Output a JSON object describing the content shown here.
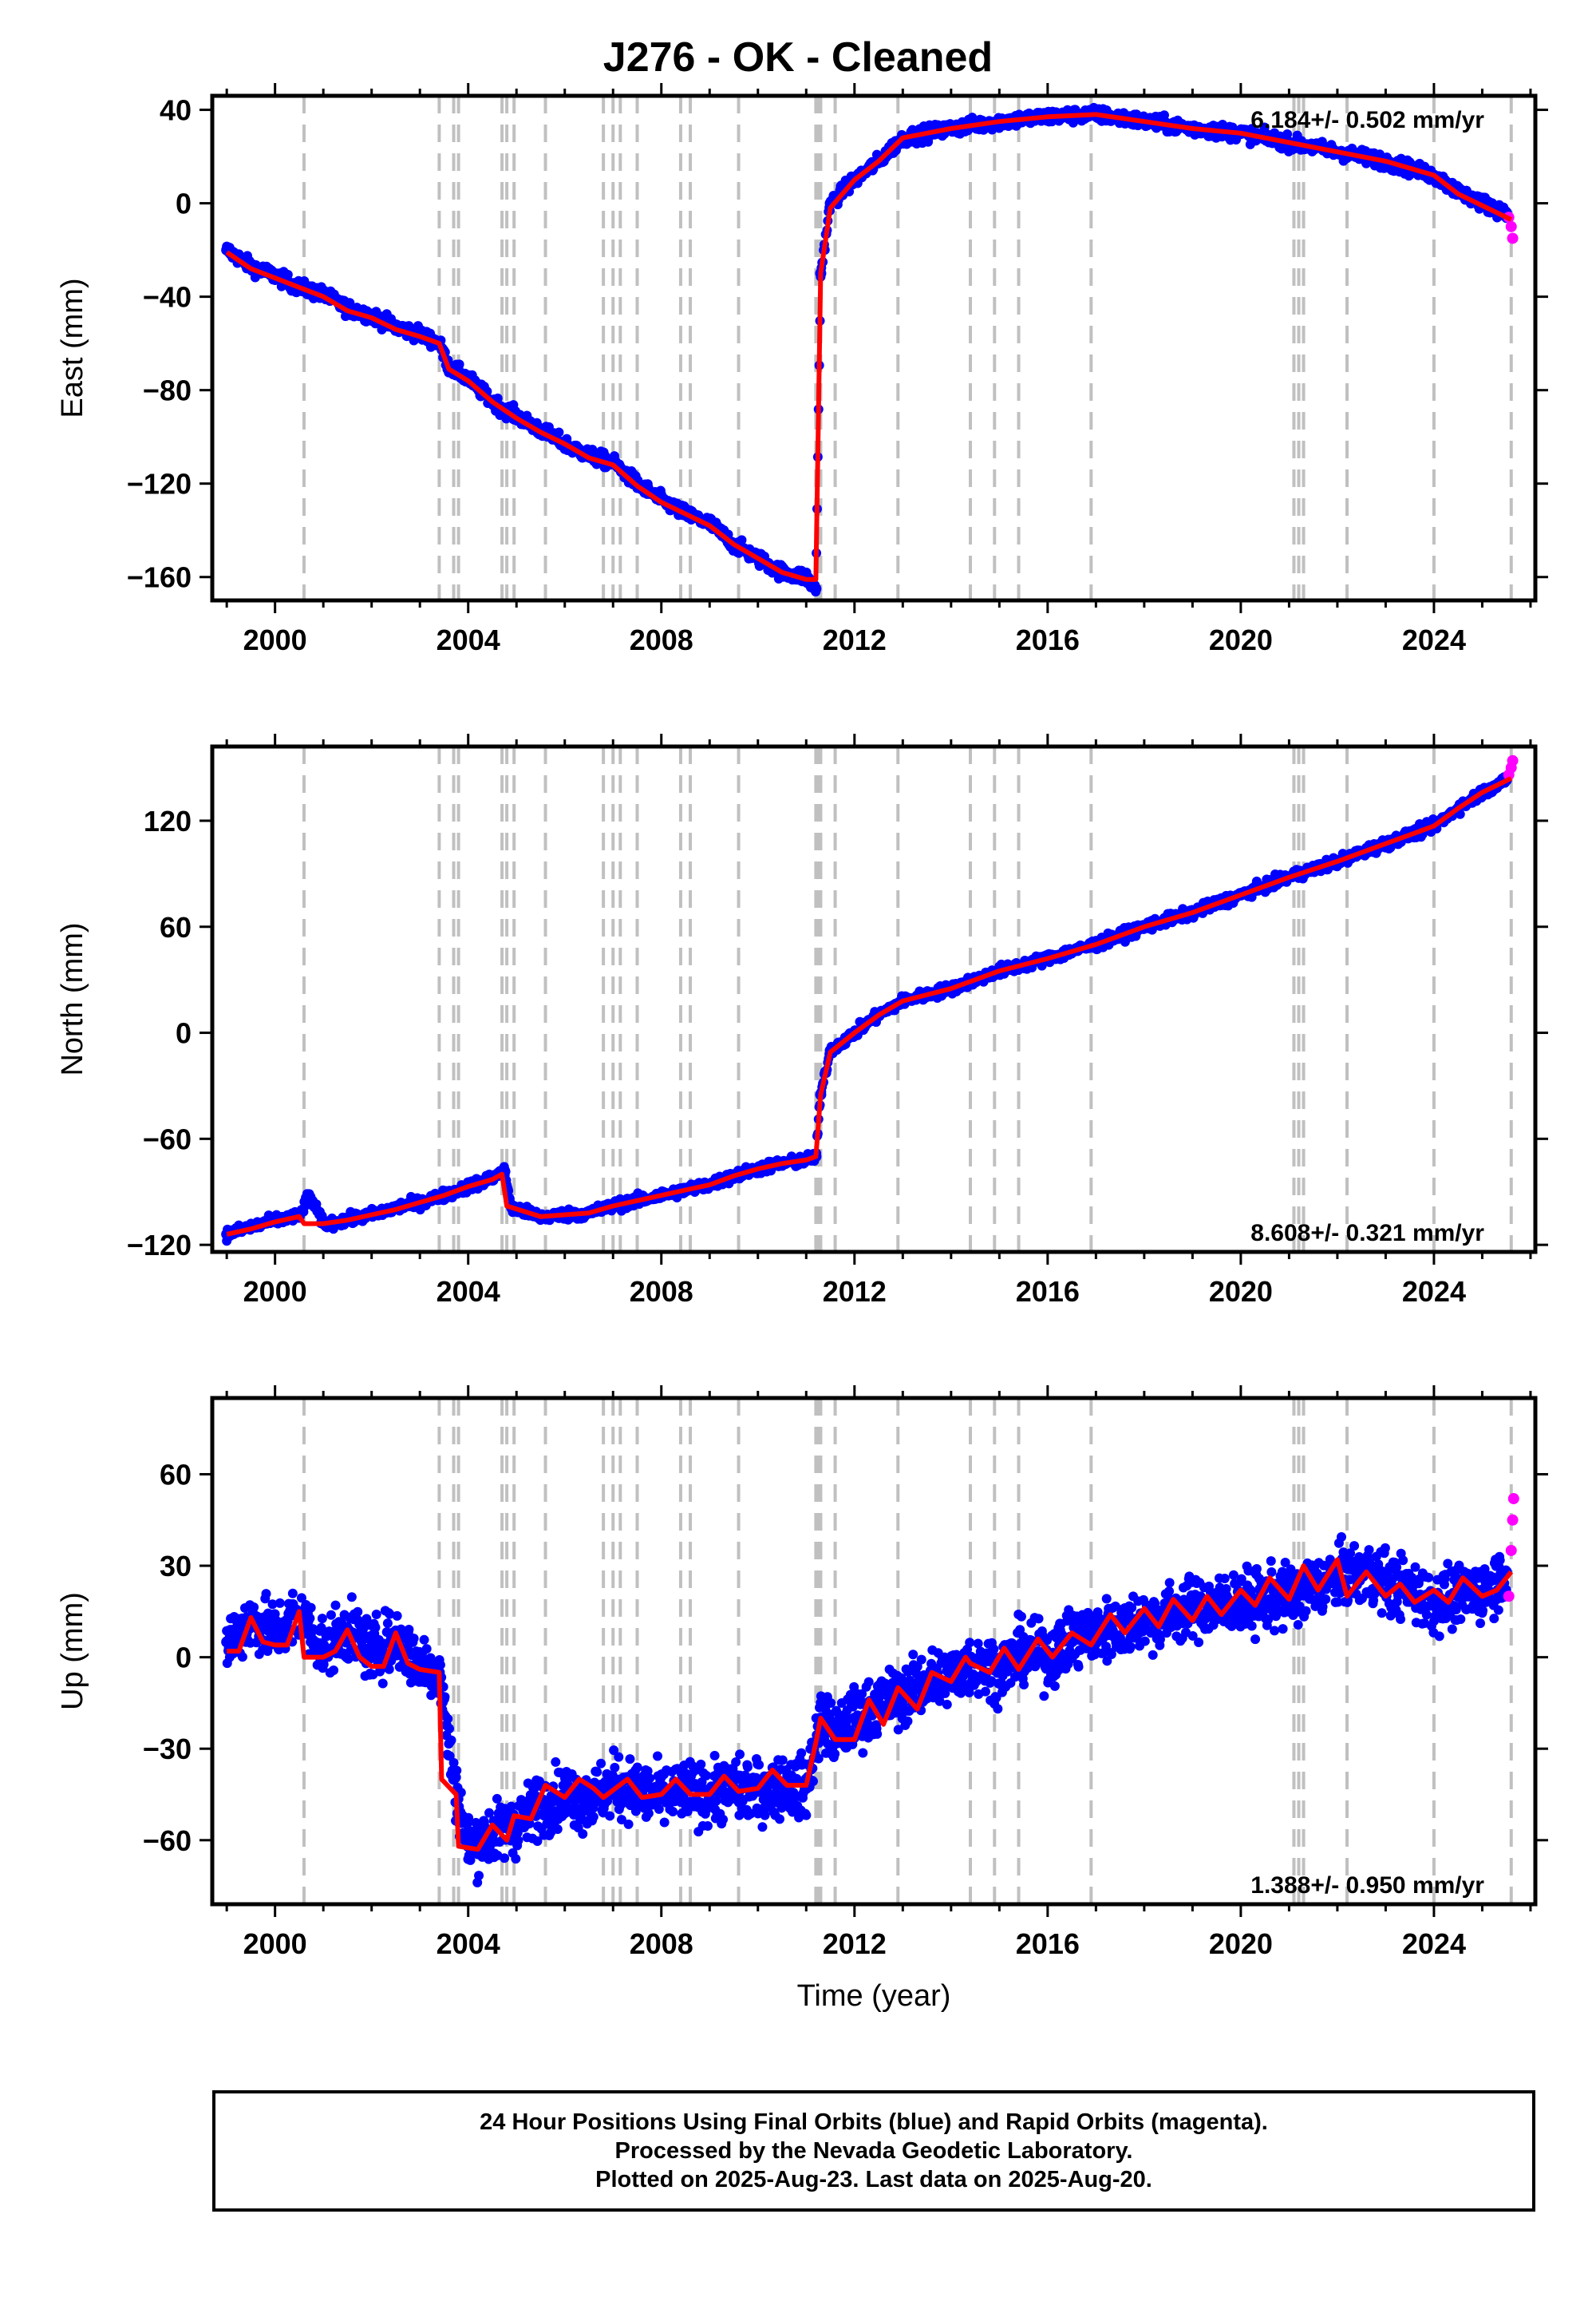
{
  "title": "J276  - OK - Cleaned",
  "footer": {
    "line1": "24 Hour Positions Using Final Orbits (blue) and Rapid Orbits (magenta).",
    "line2": "Processed by the Nevada Geodetic Laboratory.",
    "line3": "Plotted on 2025-Aug-23. Last data on 2025-Aug-20."
  },
  "colors": {
    "final": "#0000ff",
    "rapid": "#ff00ff",
    "model": "#ff0000",
    "steps": "#c0c0c0"
  },
  "chart_data": [
    {
      "type": "scatter",
      "ylabel": "East (mm)",
      "xlabel": "",
      "xlim": [
        1998.7,
        2026.1
      ],
      "ylim": [
        -170,
        46
      ],
      "x_ticks": [
        2000,
        2004,
        2008,
        2012,
        2016,
        2020,
        2024
      ],
      "y_ticks": [
        -160,
        -120,
        -80,
        -40,
        0,
        40
      ],
      "rate_text": "6.184+/- 0.502 mm/yr",
      "rate_position": "top-right",
      "step_epochs": [
        2000.6,
        2003.4,
        2003.7,
        2003.8,
        2004.7,
        2004.8,
        2004.95,
        2005.6,
        2006.8,
        2007.0,
        2007.15,
        2007.5,
        2008.4,
        2008.6,
        2009.6,
        2011.2,
        2011.25,
        2011.3,
        2011.6,
        2012.9,
        2014.4,
        2014.9,
        2015.4,
        2016.9,
        2021.1,
        2021.2,
        2021.3,
        2022.2,
        2024.0,
        2025.6
      ],
      "series": [
        {
          "name": "Final Orbits",
          "style": "points",
          "color": "blue",
          "x": [
            1999.0,
            1999.5,
            2000.0,
            2000.5,
            2001.0,
            2001.5,
            2002.0,
            2002.5,
            2003.0,
            2003.4,
            2003.6,
            2004.0,
            2004.5,
            2005.0,
            2005.5,
            2006.0,
            2006.5,
            2007.0,
            2007.5,
            2008.0,
            2008.5,
            2009.0,
            2009.5,
            2010.0,
            2010.5,
            2011.0,
            2011.2,
            2011.3,
            2011.5,
            2012.0,
            2012.5,
            2013.0,
            2013.5,
            2014.0,
            2015.0,
            2016.0,
            2017.0,
            2018.0,
            2019.0,
            2020.0,
            2021.0,
            2022.0,
            2023.0,
            2024.0,
            2024.5,
            2025.0,
            2025.5
          ],
          "y": [
            -20,
            -27,
            -31,
            -36,
            -39,
            -45,
            -48,
            -53,
            -56,
            -60,
            -70,
            -75,
            -85,
            -91,
            -97,
            -103,
            -108,
            -111,
            -120,
            -127,
            -133,
            -137,
            -146,
            -152,
            -158,
            -160,
            -165,
            -30,
            0,
            10,
            18,
            28,
            30,
            32,
            35,
            37,
            38,
            35,
            32,
            30,
            26,
            22,
            18,
            12,
            5,
            0,
            -4
          ]
        },
        {
          "name": "Rapid Orbits",
          "style": "points",
          "color": "magenta",
          "x": [
            2025.55,
            2025.6,
            2025.63
          ],
          "y": [
            -6,
            -10,
            -15
          ]
        },
        {
          "name": "Model",
          "style": "line",
          "color": "red",
          "x": [
            1999.0,
            1999.5,
            2000.0,
            2000.5,
            2001.0,
            2001.5,
            2002.0,
            2002.5,
            2003.0,
            2003.4,
            2003.6,
            2004.0,
            2004.5,
            2005.0,
            2005.5,
            2006.0,
            2006.5,
            2007.0,
            2007.5,
            2008.0,
            2008.5,
            2009.0,
            2009.5,
            2010.0,
            2010.5,
            2011.0,
            2011.2,
            2011.3,
            2011.5,
            2012.0,
            2012.5,
            2013.0,
            2013.5,
            2014.0,
            2015.0,
            2016.0,
            2017.0,
            2018.0,
            2019.0,
            2020.0,
            2021.0,
            2022.0,
            2023.0,
            2024.0,
            2024.5,
            2025.0,
            2025.6
          ],
          "y": [
            -21,
            -28,
            -32,
            -36,
            -40,
            -46,
            -49,
            -54,
            -57,
            -60,
            -71,
            -76,
            -85,
            -92,
            -98,
            -103,
            -109,
            -112,
            -121,
            -128,
            -133,
            -138,
            -146,
            -152,
            -158,
            -161,
            -161,
            -30,
            -2,
            10,
            18,
            28,
            30,
            32,
            35,
            37,
            38,
            35,
            32,
            30,
            26,
            22,
            18,
            12,
            4,
            -1,
            -7
          ]
        }
      ]
    },
    {
      "type": "scatter",
      "ylabel": "North (mm)",
      "xlabel": "",
      "xlim": [
        1998.7,
        2026.1
      ],
      "ylim": [
        -124,
        162
      ],
      "x_ticks": [
        2000,
        2004,
        2008,
        2012,
        2016,
        2020,
        2024
      ],
      "y_ticks": [
        -120,
        -60,
        0,
        60,
        120
      ],
      "rate_text": "8.608+/- 0.321 mm/yr",
      "rate_position": "bottom-right",
      "step_epochs": [
        2000.6,
        2003.4,
        2003.7,
        2003.8,
        2004.7,
        2004.8,
        2004.95,
        2005.6,
        2006.8,
        2007.0,
        2007.15,
        2007.5,
        2008.4,
        2008.6,
        2009.6,
        2011.2,
        2011.25,
        2011.3,
        2011.6,
        2012.9,
        2014.4,
        2014.9,
        2015.4,
        2016.9,
        2021.1,
        2021.2,
        2021.3,
        2022.2,
        2024.0,
        2025.6
      ],
      "series": [
        {
          "name": "Final Orbits",
          "style": "points",
          "color": "blue",
          "x": [
            1999.0,
            1999.5,
            2000.0,
            2000.5,
            2000.7,
            2001.0,
            2001.5,
            2002.0,
            2002.5,
            2003.0,
            2003.5,
            2004.0,
            2004.5,
            2004.75,
            2004.9,
            2005.5,
            2006.0,
            2006.5,
            2007.0,
            2007.5,
            2008.0,
            2008.5,
            2009.0,
            2009.5,
            2010.0,
            2010.5,
            2011.0,
            2011.2,
            2011.3,
            2011.5,
            2012.0,
            2012.5,
            2013.0,
            2014.0,
            2015.0,
            2016.0,
            2017.0,
            2018.0,
            2019.0,
            2020.0,
            2021.0,
            2022.0,
            2023.0,
            2024.0,
            2024.5,
            2025.0,
            2025.5
          ],
          "y": [
            -114,
            -110,
            -106,
            -104,
            -92,
            -108,
            -106,
            -103,
            -99,
            -96,
            -92,
            -87,
            -82,
            -78,
            -99,
            -104,
            -103,
            -102,
            -98,
            -95,
            -92,
            -89,
            -86,
            -81,
            -77,
            -74,
            -72,
            -70,
            -35,
            -10,
            0,
            10,
            18,
            25,
            35,
            42,
            50,
            60,
            68,
            78,
            88,
            97,
            107,
            117,
            127,
            136,
            143
          ]
        },
        {
          "name": "Rapid Orbits",
          "style": "points",
          "color": "magenta",
          "x": [
            2025.55,
            2025.6,
            2025.63
          ],
          "y": [
            146,
            150,
            154
          ]
        },
        {
          "name": "Model",
          "style": "line",
          "color": "red",
          "x": [
            1999.0,
            1999.5,
            2000.0,
            2000.5,
            2000.6,
            2001.0,
            2001.5,
            2002.0,
            2002.5,
            2003.0,
            2003.5,
            2004.0,
            2004.5,
            2004.7,
            2004.8,
            2005.5,
            2006.0,
            2006.5,
            2007.0,
            2007.5,
            2008.0,
            2008.5,
            2009.0,
            2009.5,
            2010.0,
            2010.5,
            2011.0,
            2011.2,
            2011.3,
            2011.5,
            2012.0,
            2012.5,
            2013.0,
            2014.0,
            2015.0,
            2016.0,
            2017.0,
            2018.0,
            2019.0,
            2020.0,
            2021.0,
            2022.0,
            2023.0,
            2024.0,
            2024.5,
            2025.0,
            2025.6
          ],
          "y": [
            -114,
            -111,
            -107,
            -104,
            -108,
            -108,
            -106,
            -103,
            -100,
            -96,
            -92,
            -87,
            -83,
            -80,
            -98,
            -104,
            -103,
            -102,
            -98,
            -95,
            -92,
            -89,
            -86,
            -81,
            -77,
            -74,
            -72,
            -70,
            -35,
            -11,
            0,
            10,
            18,
            25,
            35,
            42,
            50,
            60,
            68,
            78,
            88,
            97,
            107,
            117,
            127,
            136,
            144
          ]
        }
      ]
    },
    {
      "type": "scatter",
      "ylabel": "Up (mm)",
      "xlabel": "Time (year)",
      "xlim": [
        1998.7,
        2026.1
      ],
      "ylim": [
        -81,
        85
      ],
      "x_ticks": [
        2000,
        2004,
        2008,
        2012,
        2016,
        2020,
        2024
      ],
      "y_ticks": [
        -60,
        -30,
        0,
        30,
        60
      ],
      "rate_text": "1.388+/- 0.950 mm/yr",
      "rate_position": "bottom-right",
      "step_epochs": [
        2000.6,
        2003.4,
        2003.7,
        2003.8,
        2004.7,
        2004.8,
        2004.95,
        2005.6,
        2006.8,
        2007.0,
        2007.15,
        2007.5,
        2008.4,
        2008.6,
        2009.6,
        2011.2,
        2011.25,
        2011.3,
        2011.6,
        2012.9,
        2014.4,
        2014.9,
        2015.4,
        2016.9,
        2021.1,
        2021.2,
        2021.3,
        2022.2,
        2024.0,
        2025.6
      ],
      "series": [
        {
          "name": "Final Orbits",
          "style": "points",
          "color": "blue",
          "x": [
            1999.0,
            1999.5,
            2000.0,
            2000.5,
            2001.0,
            2001.5,
            2002.0,
            2002.5,
            2003.0,
            2003.4,
            2003.7,
            2004.0,
            2004.5,
            2005.0,
            2005.5,
            2006.0,
            2006.5,
            2007.0,
            2007.5,
            2008.0,
            2008.5,
            2009.0,
            2009.5,
            2010.0,
            2010.5,
            2011.0,
            2011.3,
            2011.6,
            2012.0,
            2012.5,
            2013.0,
            2013.5,
            2014.0,
            2014.5,
            2015.0,
            2015.5,
            2016.0,
            2016.5,
            2017.0,
            2018.0,
            2019.0,
            2020.0,
            2021.0,
            2022.0,
            2022.5,
            2023.0,
            2023.5,
            2024.0,
            2024.5,
            2025.0,
            2025.5
          ],
          "y": [
            5,
            12,
            8,
            14,
            3,
            9,
            2,
            6,
            -2,
            -5,
            -40,
            -62,
            -58,
            -55,
            -48,
            -45,
            -47,
            -42,
            -44,
            -46,
            -44,
            -45,
            -43,
            -44,
            -42,
            -43,
            -20,
            -26,
            -20,
            -16,
            -12,
            -8,
            -6,
            -2,
            -4,
            2,
            0,
            6,
            8,
            12,
            16,
            18,
            20,
            26,
            28,
            25,
            22,
            18,
            20,
            22,
            28
          ]
        },
        {
          "name": "Rapid Orbits",
          "style": "points",
          "color": "magenta",
          "x": [
            2025.55,
            2025.6,
            2025.63,
            2025.65
          ],
          "y": [
            20,
            35,
            45,
            52
          ]
        },
        {
          "name": "Model",
          "style": "line",
          "color": "red",
          "x": [
            1999.0,
            1999.25,
            1999.5,
            1999.75,
            2000.0,
            2000.25,
            2000.5,
            2000.6,
            2001.0,
            2001.25,
            2001.5,
            2001.75,
            2002.0,
            2002.25,
            2002.5,
            2002.75,
            2003.0,
            2003.4,
            2003.45,
            2003.75,
            2003.8,
            2004.2,
            2004.5,
            2004.8,
            2004.95,
            2005.3,
            2005.6,
            2006.0,
            2006.3,
            2006.6,
            2006.8,
            2007.3,
            2007.6,
            2008.0,
            2008.3,
            2008.6,
            2009.0,
            2009.3,
            2009.6,
            2010.0,
            2010.3,
            2010.6,
            2011.0,
            2011.2,
            2011.3,
            2011.6,
            2012.0,
            2012.3,
            2012.6,
            2012.9,
            2013.3,
            2013.6,
            2014.0,
            2014.3,
            2014.4,
            2014.8,
            2015.1,
            2015.4,
            2015.8,
            2016.1,
            2016.5,
            2016.9,
            2017.3,
            2017.6,
            2018.0,
            2018.3,
            2018.6,
            2019.0,
            2019.3,
            2019.6,
            2020.0,
            2020.3,
            2020.6,
            2021.0,
            2021.3,
            2021.6,
            2022.0,
            2022.2,
            2022.6,
            2023.0,
            2023.3,
            2023.6,
            2024.0,
            2024.3,
            2024.6,
            2025.0,
            2025.3,
            2025.6
          ],
          "y": [
            2,
            2,
            13,
            5,
            4,
            4,
            15,
            0,
            0,
            2,
            9,
            0,
            -3,
            -3,
            8,
            -2,
            -4,
            -5,
            -40,
            -45,
            -62,
            -63,
            -55,
            -60,
            -52,
            -53,
            -42,
            -46,
            -40,
            -43,
            -46,
            -40,
            -46,
            -45,
            -40,
            -45,
            -45,
            -39,
            -44,
            -43,
            -37,
            -42,
            -42,
            -28,
            -20,
            -27,
            -27,
            -14,
            -22,
            -10,
            -17,
            -5,
            -8,
            0,
            -2,
            -5,
            3,
            -4,
            6,
            0,
            8,
            4,
            14,
            8,
            16,
            10,
            19,
            12,
            20,
            14,
            22,
            17,
            26,
            19,
            30,
            22,
            32,
            20,
            28,
            20,
            24,
            18,
            22,
            18,
            26,
            20,
            22,
            28
          ]
        }
      ]
    }
  ]
}
